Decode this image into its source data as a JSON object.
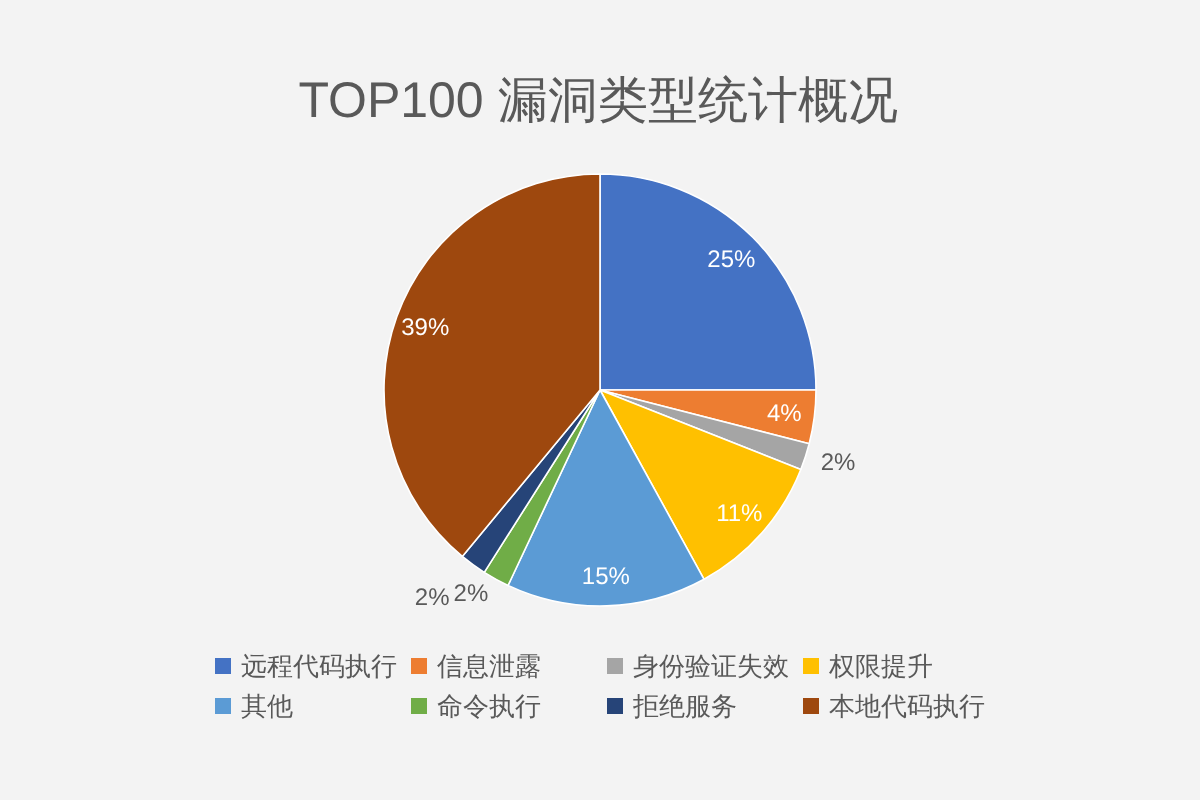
{
  "chart_data": {
    "type": "pie",
    "title": "TOP100 漏洞类型统计概况",
    "categories": [
      "远程代码执行",
      "信息泄露",
      "身份验证失效",
      "权限提升",
      "其他",
      "命令执行",
      "拒绝服务",
      "本地代码执行"
    ],
    "values": [
      25,
      4,
      2,
      11,
      15,
      2,
      2,
      39
    ],
    "colors": [
      "#4472c4",
      "#ed7d31",
      "#a5a5a5",
      "#ffc000",
      "#5b9bd5",
      "#70ad47",
      "#264478",
      "#9e480e"
    ],
    "value_labels": [
      "25%",
      "4%",
      "2%",
      "11%",
      "15%",
      "2%",
      "2%",
      "39%"
    ],
    "legend": "bottom"
  }
}
